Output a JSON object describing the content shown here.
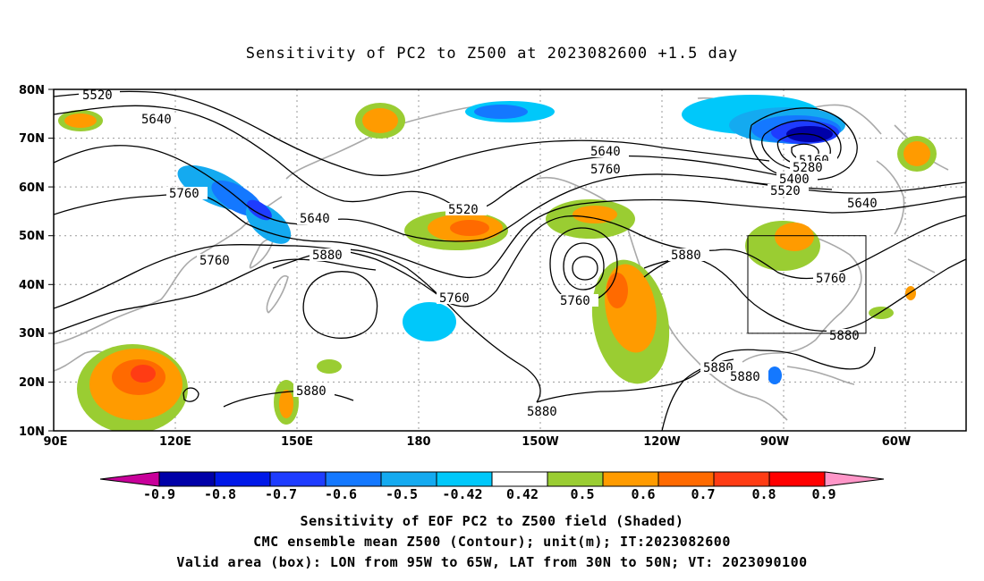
{
  "title": "Sensitivity of PC2 to Z500 at 2023082600 +1.5 day",
  "map": {
    "lon_labels": [
      "90E",
      "120E",
      "150E",
      "180",
      "150W",
      "120W",
      "90W",
      "60W"
    ],
    "lat_labels": [
      "80N",
      "70N",
      "60N",
      "50N",
      "40N",
      "30N",
      "20N",
      "10N"
    ],
    "contour_labels": [
      {
        "text": "5520",
        "region": "north pacific (west)"
      },
      {
        "text": "5640",
        "region": "siberia"
      },
      {
        "text": "5760",
        "region": "siberia"
      },
      {
        "text": "5640",
        "region": "japan sea"
      },
      {
        "text": "5760",
        "region": "north china"
      },
      {
        "text": "5880",
        "region": "north pacific"
      },
      {
        "text": "5520",
        "region": "aleutians"
      },
      {
        "text": "5760",
        "region": "east pacific"
      },
      {
        "text": "5640",
        "region": "canada"
      },
      {
        "text": "5760",
        "region": "canada"
      },
      {
        "text": "5760",
        "region": "california low"
      },
      {
        "text": "5880",
        "region": "western us"
      },
      {
        "text": "5160",
        "region": "greenland low"
      },
      {
        "text": "5280",
        "region": "greenland low"
      },
      {
        "text": "5400",
        "region": "greenland low"
      },
      {
        "text": "5520",
        "region": "greenland low"
      },
      {
        "text": "5640",
        "region": "north atlantic"
      },
      {
        "text": "5760",
        "region": "eastern us"
      },
      {
        "text": "5880",
        "region": "atlantic"
      },
      {
        "text": "5880",
        "region": "gulf of mexico"
      },
      {
        "text": "5880",
        "region": "caribbean"
      },
      {
        "text": "5880",
        "region": "east pacific"
      },
      {
        "text": "5880",
        "region": "philippines"
      }
    ],
    "valid_box": {
      "lon_range": "95W to 65W",
      "lat_range": "30N to 50N"
    }
  },
  "colorbar": {
    "labels": [
      "-0.9",
      "-0.8",
      "-0.7",
      "-0.6",
      "-0.5",
      "-0.42",
      "0.42",
      "0.5",
      "0.6",
      "0.7",
      "0.8",
      "0.9"
    ],
    "colors": [
      "#0000a8",
      "#0018e8",
      "#1e3cff",
      "#1478ff",
      "#14aaf0",
      "#00c8fa",
      "#ffffff",
      "#9acd32",
      "#ff9b00",
      "#ff6a00",
      "#ff3c14",
      "#ff0000"
    ],
    "low_end_color": "#c8009a",
    "high_end_color": "#ff96c8"
  },
  "caption": {
    "line1": "Sensitivity of EOF PC2 to Z500 field (Shaded)",
    "line2": "CMC ensemble mean Z500 (Contour); unit(m); IT:2023082600",
    "line3": "Valid area (box): LON from 95W to 65W, LAT from 30N to 50N; VT: 2023090100"
  }
}
